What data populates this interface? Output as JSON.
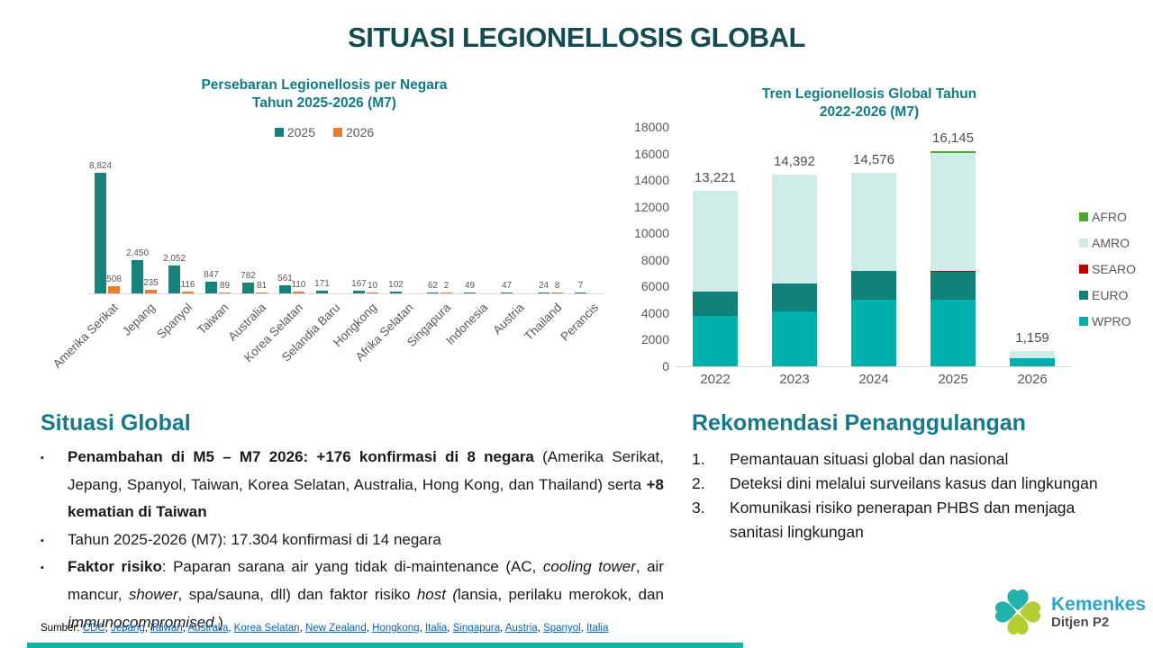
{
  "slide": {
    "title": "SITUASI LEGIONELLOSIS GLOBAL"
  },
  "colors": {
    "title": "#124d53",
    "chart_title": "#0e7c84",
    "section_heading": "#15798c",
    "bar_2025": "#17837a",
    "bar_2026": "#e87e30",
    "afro": "#4ea72e",
    "amro": "#cfece9",
    "searo": "#c00000",
    "euro": "#108176",
    "wpro": "#00b0ab",
    "label_gray": "#595959",
    "link_blue": "#0563c1",
    "footer_bar": "#16b2a7",
    "logo_teal": "#23b2aa",
    "logo_lime": "#b4cd32"
  },
  "chart_data": [
    {
      "type": "bar",
      "title": "Persebaran Legionellosis per Negara Tahun 2025-2026 (M7)",
      "title_lines": [
        "Persebaran Legionellosis per Negara",
        "Tahun 2025-2026 (M7)"
      ],
      "legend_position": "top",
      "grid": false,
      "ylim": [
        0,
        9000
      ],
      "categories": [
        "Amerika Serikat",
        "Jepang",
        "Spanyol",
        "Taiwan",
        "Australia",
        "Korea Selatan",
        "Selandia Baru",
        "Hongkong",
        "Afrika Selatan",
        "Singapura",
        "Indonesia",
        "Austria",
        "Thailand",
        "Perancis"
      ],
      "series": [
        {
          "name": "2025",
          "values": [
            8824,
            2450,
            2052,
            847,
            782,
            561,
            171,
            167,
            102,
            62,
            49,
            47,
            24,
            7
          ]
        },
        {
          "name": "2026",
          "values": [
            508,
            235,
            116,
            89,
            81,
            110,
            0,
            10,
            0,
            2,
            0,
            0,
            8,
            0
          ]
        }
      ]
    },
    {
      "type": "stacked-bar",
      "title": "Tren Legionellosis Global Tahun 2022-2026 (M7)",
      "title_lines": [
        "Tren Legionellosis Global Tahun",
        "2022-2026 (M7)"
      ],
      "categories": [
        "2022",
        "2023",
        "2024",
        "2025",
        "2026"
      ],
      "totals": [
        13221,
        14392,
        14576,
        16145,
        1159
      ],
      "series": [
        {
          "name": "WPRO",
          "color_key": "wpro",
          "values": [
            3800,
            4100,
            5000,
            5000,
            600
          ]
        },
        {
          "name": "EURO",
          "color_key": "euro",
          "values": [
            1800,
            2100,
            2200,
            2100,
            0
          ]
        },
        {
          "name": "SEARO",
          "color_key": "searo",
          "values": [
            0,
            0,
            0,
            60,
            0
          ]
        },
        {
          "name": "AMRO",
          "color_key": "amro",
          "values": [
            7621,
            8192,
            7376,
            8885,
            559
          ]
        },
        {
          "name": "AFRO",
          "color_key": "afro",
          "values": [
            0,
            0,
            0,
            100,
            0
          ]
        }
      ],
      "legend": [
        "AFRO",
        "AMRO",
        "SEARO",
        "EURO",
        "WPRO"
      ],
      "legend_position": "right",
      "yticks": [
        0,
        2000,
        4000,
        6000,
        8000,
        10000,
        12000,
        14000,
        16000,
        18000
      ],
      "ylim": [
        0,
        18000
      ],
      "grid": false
    }
  ],
  "situasi": {
    "heading": "Situasi Global",
    "bullets": [
      [
        {
          "t": "Penambahan di M5 – M7 2026: +176 konfirmasi di 8 negara ",
          "b": true
        },
        {
          "t": "(Amerika Serikat, Jepang, Spanyol, Taiwan, Korea Selatan, Australia, Hong Kong, dan Thailand) serta "
        },
        {
          "t": "+8 kematian di Taiwan",
          "b": true
        }
      ],
      [
        {
          "t": "Tahun 2025-2026 (M7): 17.304  konfirmasi di 14 negara"
        }
      ],
      [
        {
          "t": "Faktor risiko",
          "b": true
        },
        {
          "t": ": Paparan sarana air yang tidak di-maintenance (AC, "
        },
        {
          "t": "cooling tower",
          "i": true
        },
        {
          "t": ", air mancur, "
        },
        {
          "t": "shower",
          "i": true
        },
        {
          "t": ", spa/sauna, dll) dan faktor risiko "
        },
        {
          "t": "host (",
          "i": true
        },
        {
          "t": "lansia, perilaku merokok, dan "
        },
        {
          "t": "immunocompromised",
          "i": true
        },
        {
          "t": ".)"
        }
      ]
    ]
  },
  "rekomendasi": {
    "heading": "Rekomendasi Penanggulangan",
    "items": [
      "Pemantauan situasi global dan nasional",
      "Deteksi dini melalui surveilans kasus dan lingkungan",
      "Komunikasi risiko penerapan PHBS dan menjaga sanitasi lingkungan"
    ]
  },
  "footer": {
    "label": "Sumber:",
    "links": [
      "CDC",
      "Jepang",
      "Taiwan",
      "Australia",
      "Korea Selatan",
      "New Zealand",
      "Hongkong",
      "Italia",
      "Singapura",
      "Austria",
      "Spanyol",
      "Italia"
    ]
  },
  "logo": {
    "name": "Kemenkes",
    "subtitle": "Ditjen P2"
  }
}
